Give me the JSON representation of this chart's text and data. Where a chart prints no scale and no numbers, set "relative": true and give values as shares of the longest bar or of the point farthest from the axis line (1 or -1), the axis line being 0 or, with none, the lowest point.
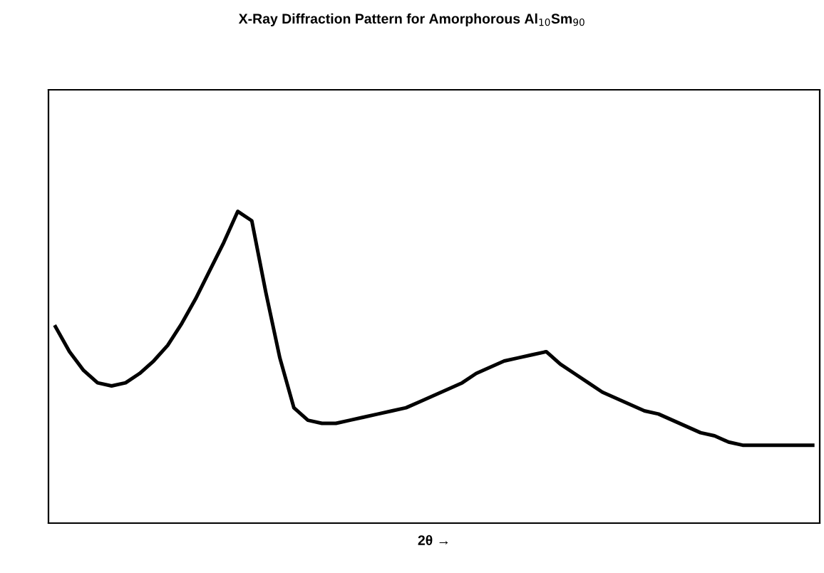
{
  "chart_data": {
    "type": "line",
    "relative": true,
    "title": "X-Ray Diffraction Pattern for Amorphorous Al$_{10}$Sm$_{90}$",
    "xlabel": "2θ →",
    "color": "#000000",
    "grid": false,
    "legend": false,
    "marker": "none",
    "line_style": "solid",
    "tick_labels": false,
    "categories": [
      null,
      null,
      null,
      null,
      null,
      null,
      null,
      null,
      null,
      null,
      null,
      null,
      null,
      null,
      null,
      null,
      null,
      null,
      null,
      null,
      null,
      null,
      null,
      null,
      null,
      null,
      null,
      null,
      null,
      null,
      null,
      null,
      null,
      null,
      null,
      null,
      null,
      null,
      null,
      null,
      null,
      null,
      null,
      null,
      null,
      null,
      null,
      null,
      null,
      null,
      null,
      null,
      null,
      null,
      null
    ],
    "values": [
      0.63,
      0.55,
      0.49,
      0.45,
      0.44,
      0.45,
      0.48,
      0.52,
      0.57,
      0.64,
      0.72,
      0.81,
      0.9,
      1.0,
      0.97,
      0.74,
      0.53,
      0.37,
      0.33,
      0.32,
      0.32,
      0.33,
      0.34,
      0.35,
      0.36,
      0.37,
      0.39,
      0.41,
      0.43,
      0.45,
      0.48,
      0.5,
      0.52,
      0.53,
      0.54,
      0.55,
      0.51,
      0.48,
      0.45,
      0.42,
      0.4,
      0.38,
      0.36,
      0.35,
      0.33,
      0.31,
      0.29,
      0.28,
      0.26,
      0.25,
      0.25,
      0.25,
      0.25,
      0.25,
      0.25
    ]
  }
}
